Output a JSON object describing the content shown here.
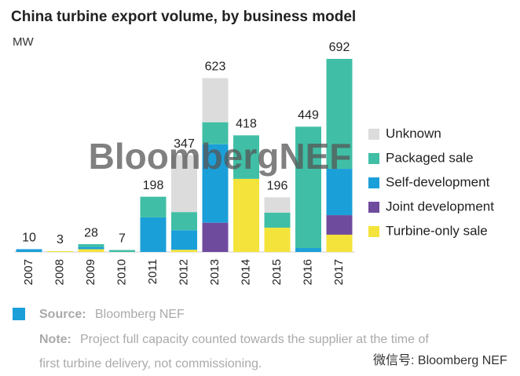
{
  "chart_data": {
    "type": "stacked-bar",
    "title": "China turbine export volume, by business model",
    "unit": "MW",
    "categories": [
      "2007",
      "2008",
      "2009",
      "2010",
      "2011",
      "2012",
      "2013",
      "2014",
      "2015",
      "2016",
      "2017"
    ],
    "totals": [
      10,
      3,
      28,
      7,
      198,
      347,
      623,
      418,
      196,
      449,
      692
    ],
    "series": [
      {
        "name": "Turbine-only sale",
        "color": "#f4e33a",
        "values": [
          0,
          3,
          10,
          0,
          0,
          8,
          0,
          262,
          87,
          0,
          62
        ]
      },
      {
        "name": "Joint development",
        "color": "#6f4b9e",
        "values": [
          0,
          0,
          0,
          0,
          0,
          0,
          105,
          0,
          0,
          0,
          70
        ]
      },
      {
        "name": "Self-development",
        "color": "#1b9fd9",
        "values": [
          10,
          0,
          8,
          0,
          124,
          70,
          281,
          0,
          0,
          14,
          166
        ]
      },
      {
        "name": "Packaged sale",
        "color": "#40bfa6",
        "values": [
          0,
          0,
          10,
          7,
          74,
          65,
          79,
          156,
          54,
          435,
          394
        ]
      },
      {
        "name": "Unknown",
        "color": "#dcdcdc",
        "values": [
          0,
          0,
          0,
          0,
          0,
          204,
          158,
          0,
          55,
          0,
          0
        ]
      }
    ],
    "watermark": "BloombergNEF"
  },
  "footer": {
    "source_label": "Source:",
    "source_text": "Bloomberg NEF",
    "note_label": "Note:",
    "note_lines": [
      "Project full capacity counted towards the supplier at the time of",
      "first turbine delivery, not commissioning."
    ],
    "wechat": "微信号: Bloomberg NEF"
  }
}
